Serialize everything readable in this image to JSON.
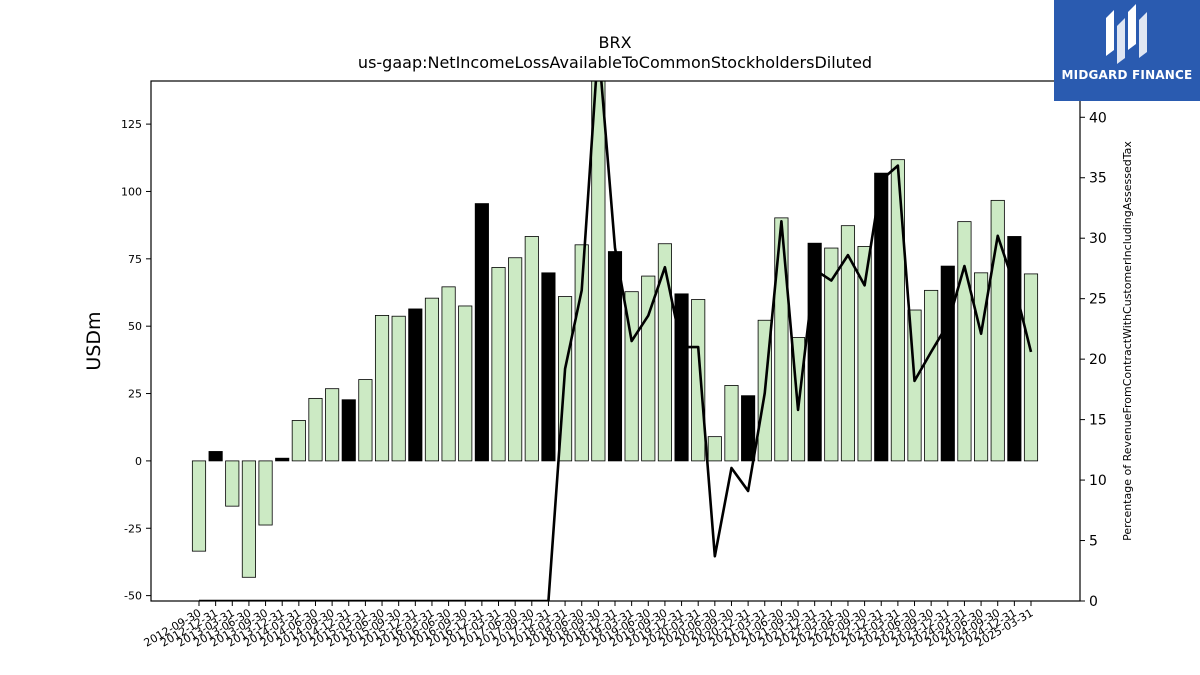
{
  "chart_data": {
    "type": "bar",
    "title": "BRX",
    "subtitle": "us-gaap:NetIncomeLossAvailableToCommonStockholdersDiluted",
    "ylabel": "USDm",
    "y2label": "Percentage of RevenueFromContractWithCustomerIncludingAssessedTax",
    "ylim": [
      -52,
      141
    ],
    "y2lim": [
      0,
      43
    ],
    "yticks": [
      -50,
      -25,
      0,
      25,
      50,
      75,
      100,
      125
    ],
    "y2ticks": [
      0,
      5,
      10,
      15,
      20,
      25,
      30,
      35,
      40
    ],
    "categories": [
      "2012-09-30",
      "2012-12-31",
      "2013-03-31",
      "2013-06-30",
      "2013-09-30",
      "2013-12-31",
      "2014-03-31",
      "2014-06-30",
      "2014-09-30",
      "2014-12-31",
      "2015-03-31",
      "2015-06-30",
      "2015-09-30",
      "2015-12-31",
      "2016-03-31",
      "2016-06-30",
      "2016-09-30",
      "2016-12-31",
      "2017-03-31",
      "2017-06-30",
      "2017-09-30",
      "2017-12-31",
      "2018-03-31",
      "2018-06-30",
      "2018-09-30",
      "2018-12-31",
      "2019-03-31",
      "2019-06-30",
      "2019-09-30",
      "2019-12-31",
      "2020-03-31",
      "2020-06-30",
      "2020-09-30",
      "2020-12-31",
      "2021-03-31",
      "2021-06-30",
      "2021-09-30",
      "2021-12-31",
      "2022-03-31",
      "2022-06-30",
      "2022-09-30",
      "2022-12-31",
      "2023-03-31",
      "2023-06-30",
      "2023-09-30",
      "2023-12-31",
      "2024-03-31",
      "2024-06-30",
      "2024-09-30",
      "2024-12-31",
      "2025-03-31"
    ],
    "series": [
      {
        "type": "bar",
        "values": [
          -33.5,
          3.5,
          -16.8,
          -43.2,
          -23.8,
          1.0,
          15.0,
          23.2,
          26.8,
          22.7,
          30.2,
          54.0,
          53.7,
          56.4,
          60.4,
          64.6,
          57.5,
          95.5,
          71.8,
          75.4,
          83.3,
          69.8,
          61.0,
          80.2,
          145.0,
          77.7,
          62.8,
          68.6,
          80.6,
          62.0,
          59.9,
          9.0,
          28.0,
          24.2,
          52.2,
          90.2,
          45.8,
          80.8,
          79.0,
          87.3,
          79.6,
          106.8,
          111.8,
          56.0,
          63.3,
          72.3,
          88.8,
          69.8,
          96.7,
          83.3,
          69.4
        ],
        "highlight": [
          false,
          true,
          false,
          false,
          false,
          true,
          false,
          false,
          false,
          true,
          false,
          false,
          false,
          true,
          false,
          false,
          false,
          true,
          false,
          false,
          false,
          true,
          false,
          false,
          false,
          true,
          false,
          false,
          false,
          true,
          false,
          false,
          false,
          true,
          false,
          false,
          false,
          true,
          false,
          false,
          false,
          true,
          false,
          false,
          false,
          true,
          false,
          false,
          false,
          true,
          false
        ],
        "color": "#cceac4",
        "highlight_color": "#000000",
        "edge_color": "#000000"
      },
      {
        "type": "line",
        "axis": "right",
        "values": [
          0,
          0,
          0,
          0,
          0,
          0,
          0,
          0,
          0,
          0,
          0,
          0,
          0,
          0,
          0,
          0,
          0,
          0,
          0,
          0,
          0,
          0,
          19.2,
          25.7,
          46.0,
          29.2,
          21.5,
          23.6,
          27.6,
          21.0,
          21.0,
          3.7,
          11.0,
          9.1,
          17.2,
          31.4,
          15.8,
          27.4,
          26.5,
          28.6,
          26.1,
          34.8,
          36.0,
          18.2,
          20.6,
          22.9,
          27.7,
          22.1,
          30.2,
          26.1,
          20.6
        ],
        "color": "#000000"
      }
    ],
    "grid": false,
    "legend": "none"
  },
  "logo": {
    "text": "MIDGARD FINANCE",
    "background": "#2a5bb0"
  }
}
